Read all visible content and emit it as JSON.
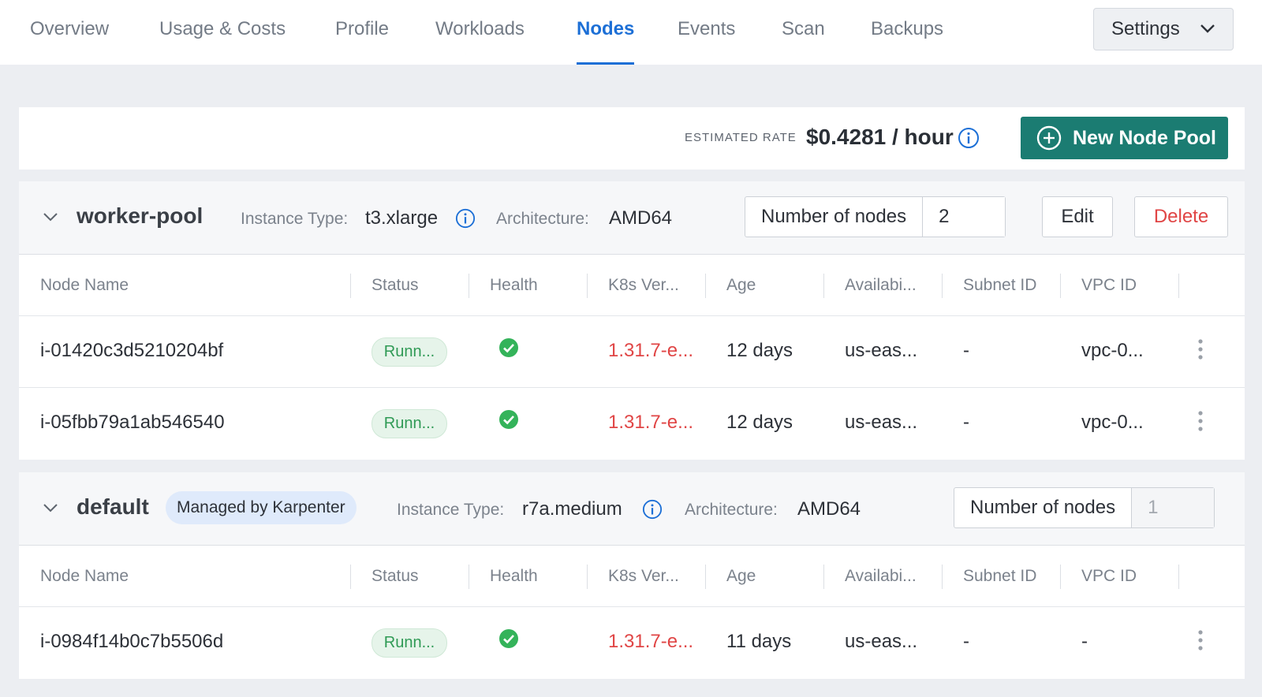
{
  "nav": {
    "tabs": [
      {
        "label": "Overview"
      },
      {
        "label": "Usage & Costs"
      },
      {
        "label": "Profile"
      },
      {
        "label": "Workloads"
      },
      {
        "label": "Nodes",
        "active": true
      },
      {
        "label": "Events"
      },
      {
        "label": "Scan"
      },
      {
        "label": "Backups"
      }
    ],
    "settings_label": "Settings"
  },
  "rate": {
    "label": "ESTIMATED RATE",
    "value": "$0.4281 / hour",
    "new_pool_label": "New Node Pool"
  },
  "table_headers": [
    "Node Name",
    "Status",
    "Health",
    "K8s Ver...",
    "Age",
    "Availabi...",
    "Subnet ID",
    "VPC ID"
  ],
  "pools": [
    {
      "name": "worker-pool",
      "badge": "",
      "instance_type_label": "Instance Type:",
      "instance_type": "t3.xlarge",
      "architecture_label": "Architecture:",
      "architecture": "AMD64",
      "nodes_label": "Number of nodes",
      "nodes_value": "2",
      "edit_label": "Edit",
      "delete_label": "Delete",
      "rows": [
        {
          "name": "i-01420c3d5210204bf",
          "status": "Runn...",
          "version": "1.31.7-e...",
          "age": "12 days",
          "availability": "us-eas...",
          "subnet": "-",
          "vpc": "vpc-0..."
        },
        {
          "name": "i-05fbb79a1ab546540",
          "status": "Runn...",
          "version": "1.31.7-e...",
          "age": "12 days",
          "availability": "us-eas...",
          "subnet": "-",
          "vpc": "vpc-0..."
        }
      ]
    },
    {
      "name": "default",
      "badge": "Managed by Karpenter",
      "instance_type_label": "Instance Type:",
      "instance_type": "r7a.medium",
      "architecture_label": "Architecture:",
      "architecture": "AMD64",
      "nodes_label": "Number of nodes",
      "nodes_value": "1",
      "rows": [
        {
          "name": "i-0984f14b0c7b5506d",
          "status": "Runn...",
          "version": "1.31.7-e...",
          "age": "11 days",
          "availability": "us-eas...",
          "subnet": "-",
          "vpc": "-"
        }
      ]
    }
  ],
  "colors": {
    "accent": "#1c6fd6",
    "primary_button": "#1b7c72",
    "danger": "#e04545",
    "success": "#2f9a55"
  }
}
